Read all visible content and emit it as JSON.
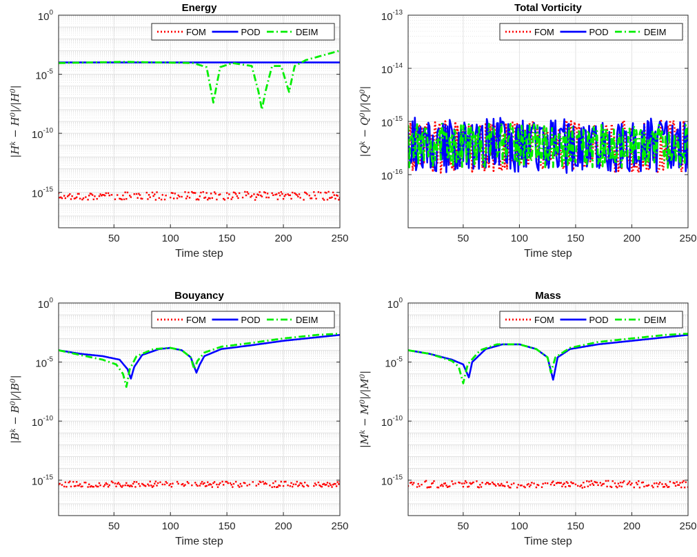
{
  "chart_data": [
    {
      "type": "line",
      "title": "Energy",
      "xlabel": "Time step",
      "ylabel": "|H^k − H^0|/|H^0|",
      "yscale": "log",
      "xlim": [
        1,
        250
      ],
      "ylim_exp": [
        -18,
        0
      ],
      "ytick_exps": [
        -15,
        -10,
        -5,
        0
      ],
      "xticks": [
        50,
        100,
        150,
        200,
        250
      ],
      "grid": true,
      "minor_grid": true,
      "legend": "top-right",
      "series": [
        {
          "name": "FOM",
          "style": "dotted",
          "color": "#ff0000",
          "kind": "noise",
          "center_exp": -15.3,
          "spread": 0.35,
          "points": []
        },
        {
          "name": "POD",
          "style": "solid",
          "color": "#0000ff",
          "points": [
            [
              1,
              -4.0
            ],
            [
              250,
              -4.0
            ]
          ]
        },
        {
          "name": "DEIM",
          "style": "dashdot",
          "color": "#00ee00",
          "points": [
            [
              1,
              -4.05
            ],
            [
              60,
              -3.95
            ],
            [
              120,
              -4.05
            ],
            [
              132,
              -4.4
            ],
            [
              138,
              -7.4
            ],
            [
              144,
              -4.4
            ],
            [
              155,
              -4.05
            ],
            [
              172,
              -4.3
            ],
            [
              178,
              -6.5
            ],
            [
              181,
              -8.0
            ],
            [
              184,
              -6.5
            ],
            [
              190,
              -4.3
            ],
            [
              198,
              -4.3
            ],
            [
              205,
              -6.5
            ],
            [
              210,
              -4.3
            ],
            [
              220,
              -3.8
            ],
            [
              235,
              -3.4
            ],
            [
              250,
              -3.0
            ]
          ]
        }
      ]
    },
    {
      "type": "line",
      "title": "Total Vorticity",
      "xlabel": "Time step",
      "ylabel": "|Q^k − Q^0|/|Q^0|",
      "yscale": "log",
      "xlim": [
        1,
        250
      ],
      "ylim_exp": [
        -17,
        -13
      ],
      "ytick_exps": [
        -16,
        -15,
        -14,
        -13
      ],
      "xticks": [
        50,
        100,
        150,
        200,
        250
      ],
      "grid": true,
      "minor_grid": true,
      "legend": "top-right",
      "series": [
        {
          "name": "FOM",
          "style": "dotted",
          "color": "#ff0000",
          "kind": "switch",
          "low_exp": -15.8,
          "high_exp": -15.15
        },
        {
          "name": "POD",
          "style": "solid",
          "color": "#0000ff",
          "kind": "switch",
          "low_exp": -15.8,
          "high_exp": -15.1
        },
        {
          "name": "DEIM",
          "style": "dashdot",
          "color": "#00ee00",
          "kind": "switch",
          "low_exp": -15.7,
          "high_exp": -15.2
        }
      ]
    },
    {
      "type": "line",
      "title": "Bouyancy",
      "xlabel": "Time step",
      "ylabel": "|B^k − B^0|/|B^0|",
      "yscale": "log",
      "xlim": [
        1,
        250
      ],
      "ylim_exp": [
        -18,
        0
      ],
      "ytick_exps": [
        -15,
        -10,
        -5,
        0
      ],
      "xticks": [
        50,
        100,
        150,
        200,
        250
      ],
      "grid": true,
      "minor_grid": true,
      "legend": "top-right",
      "series": [
        {
          "name": "FOM",
          "style": "dotted",
          "color": "#ff0000",
          "kind": "noise",
          "center_exp": -15.35,
          "spread": 0.25
        },
        {
          "name": "POD",
          "style": "solid",
          "color": "#0000ff",
          "points": [
            [
              1,
              -4.0
            ],
            [
              20,
              -4.3
            ],
            [
              40,
              -4.5
            ],
            [
              55,
              -4.8
            ],
            [
              62,
              -5.6
            ],
            [
              65,
              -6.4
            ],
            [
              68,
              -5.4
            ],
            [
              75,
              -4.4
            ],
            [
              90,
              -3.9
            ],
            [
              100,
              -3.8
            ],
            [
              110,
              -4.0
            ],
            [
              118,
              -4.6
            ],
            [
              123,
              -5.9
            ],
            [
              126,
              -5.2
            ],
            [
              130,
              -4.5
            ],
            [
              145,
              -3.9
            ],
            [
              170,
              -3.6
            ],
            [
              200,
              -3.2
            ],
            [
              230,
              -2.9
            ],
            [
              250,
              -2.7
            ]
          ]
        },
        {
          "name": "DEIM",
          "style": "dashdot",
          "color": "#00ee00",
          "points": [
            [
              1,
              -4.0
            ],
            [
              20,
              -4.4
            ],
            [
              40,
              -4.8
            ],
            [
              52,
              -5.2
            ],
            [
              58,
              -6.0
            ],
            [
              61,
              -7.1
            ],
            [
              64,
              -5.6
            ],
            [
              70,
              -4.5
            ],
            [
              85,
              -3.9
            ],
            [
              100,
              -3.8
            ],
            [
              110,
              -4.0
            ],
            [
              118,
              -4.6
            ],
            [
              121,
              -5.6
            ],
            [
              124,
              -4.9
            ],
            [
              130,
              -4.2
            ],
            [
              145,
              -3.7
            ],
            [
              170,
              -3.4
            ],
            [
              200,
              -3.0
            ],
            [
              230,
              -2.7
            ],
            [
              250,
              -2.6
            ]
          ]
        }
      ]
    },
    {
      "type": "line",
      "title": "Mass",
      "xlabel": "Time step",
      "ylabel": "|M^k − M^0|/|M^0|",
      "yscale": "log",
      "xlim": [
        1,
        250
      ],
      "ylim_exp": [
        -18,
        0
      ],
      "ytick_exps": [
        -15,
        -10,
        -5,
        0
      ],
      "xticks": [
        50,
        100,
        150,
        200,
        250
      ],
      "grid": true,
      "minor_grid": true,
      "legend": "top-right",
      "series": [
        {
          "name": "FOM",
          "style": "dotted",
          "color": "#ff0000",
          "kind": "noise",
          "center_exp": -15.35,
          "spread": 0.3
        },
        {
          "name": "POD",
          "style": "solid",
          "color": "#0000ff",
          "points": [
            [
              1,
              -4.0
            ],
            [
              20,
              -4.3
            ],
            [
              40,
              -4.8
            ],
            [
              50,
              -5.2
            ],
            [
              55,
              -6.3
            ],
            [
              58,
              -5.0
            ],
            [
              70,
              -3.9
            ],
            [
              85,
              -3.5
            ],
            [
              100,
              -3.5
            ],
            [
              115,
              -3.9
            ],
            [
              125,
              -4.6
            ],
            [
              130,
              -6.5
            ],
            [
              134,
              -4.6
            ],
            [
              145,
              -3.9
            ],
            [
              170,
              -3.5
            ],
            [
              200,
              -3.2
            ],
            [
              230,
              -2.9
            ],
            [
              250,
              -2.7
            ]
          ]
        },
        {
          "name": "DEIM",
          "style": "dashdot",
          "color": "#00ee00",
          "points": [
            [
              1,
              -4.0
            ],
            [
              20,
              -4.3
            ],
            [
              40,
              -4.9
            ],
            [
              46,
              -5.4
            ],
            [
              50,
              -6.8
            ],
            [
              54,
              -5.2
            ],
            [
              65,
              -4.0
            ],
            [
              80,
              -3.5
            ],
            [
              100,
              -3.5
            ],
            [
              115,
              -3.9
            ],
            [
              125,
              -4.6
            ],
            [
              128,
              -5.9
            ],
            [
              132,
              -4.6
            ],
            [
              145,
              -3.8
            ],
            [
              170,
              -3.3
            ],
            [
              200,
              -3.0
            ],
            [
              230,
              -2.7
            ],
            [
              250,
              -2.6
            ]
          ]
        }
      ]
    }
  ]
}
